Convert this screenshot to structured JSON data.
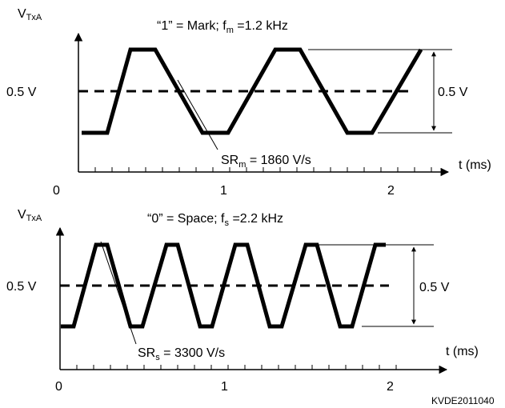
{
  "diagram": {
    "top": {
      "y_axis_main": "V",
      "y_axis_sub": "TxA",
      "title_prefix": "“1” = Mark; f",
      "title_sub": "m",
      "title_suffix": " =1.2 kHz",
      "level_label": "0.5 V",
      "amplitude_label": "0.5 V",
      "slew_main": "SR",
      "slew_sub": "m",
      "slew_suffix": " = 1860 V/s",
      "t_label": "t (ms)",
      "ticks": [
        "0",
        "1",
        "2"
      ]
    },
    "bottom": {
      "y_axis_main": "V",
      "y_axis_sub": "TxA",
      "title_prefix": "“0” = Space; f",
      "title_sub": "s",
      "title_suffix": " =2.2 kHz",
      "level_label": "0.5 V",
      "amplitude_label": "0.5 V",
      "slew_main": "SR",
      "slew_sub": "s",
      "slew_suffix": " = 3300 V/s",
      "t_label": "t (ms)",
      "ticks": [
        "0",
        "1",
        "2"
      ]
    },
    "doc_code": "KVDE2011040"
  }
}
